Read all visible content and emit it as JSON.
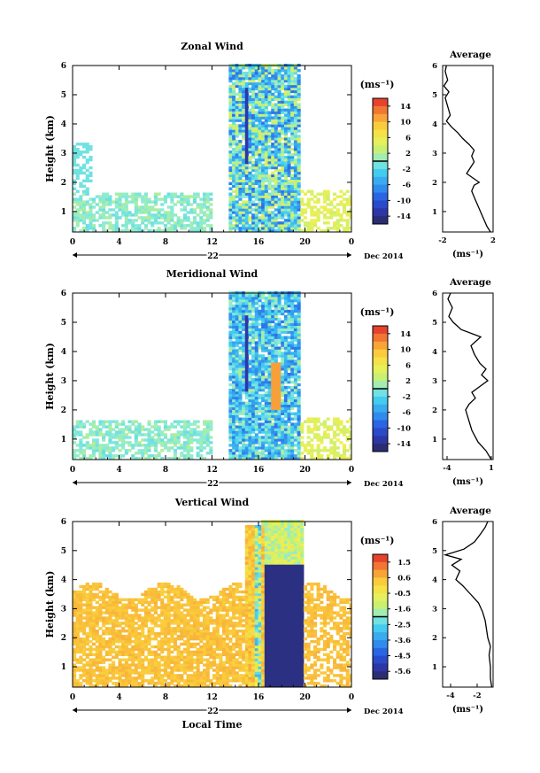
{
  "chart_data": [
    {
      "type": "heatmap",
      "title": "Zonal Wind",
      "ylabel": "Height (km)",
      "xticks": [
        "0",
        "4",
        "8",
        "12",
        "16",
        "20",
        "0"
      ],
      "yticks": [
        "1",
        "2",
        "3",
        "4",
        "5",
        "6"
      ],
      "date_center": "22",
      "date_label": "Dec 2014",
      "ylim": [
        0.3,
        6
      ],
      "xlim": [
        0,
        24
      ],
      "colorbar": {
        "unit": "(ms⁻¹)",
        "ticks": [
          "14",
          "10",
          "6",
          "2",
          "-2",
          "-6",
          "-10",
          "-14"
        ],
        "range": [
          -16,
          16
        ]
      },
      "profile": {
        "title": "Average",
        "xlabel": "(ms⁻¹)",
        "xticks": [
          "-2",
          "2"
        ],
        "xlim": [
          -2,
          2
        ],
        "yticks": [
          "1",
          "2",
          "3",
          "4",
          "5",
          "6"
        ],
        "points": [
          [
            1.8,
            0.3
          ],
          [
            1.5,
            0.5
          ],
          [
            1.2,
            0.8
          ],
          [
            0.9,
            1.1
          ],
          [
            0.6,
            1.4
          ],
          [
            0.3,
            1.7
          ],
          [
            0.5,
            1.9
          ],
          [
            0.9,
            2.0
          ],
          [
            0.4,
            2.15
          ],
          [
            -0.1,
            2.3
          ],
          [
            0.2,
            2.5
          ],
          [
            0.5,
            2.7
          ],
          [
            0.3,
            2.9
          ],
          [
            0.5,
            3.1
          ],
          [
            0.1,
            3.3
          ],
          [
            -0.4,
            3.5
          ],
          [
            -0.8,
            3.7
          ],
          [
            -1.3,
            3.9
          ],
          [
            -1.7,
            4.1
          ],
          [
            -1.4,
            4.3
          ],
          [
            -1.6,
            4.6
          ],
          [
            -1.8,
            4.9
          ],
          [
            -1.5,
            5.1
          ],
          [
            -1.9,
            5.3
          ],
          [
            -1.6,
            5.5
          ],
          [
            -1.8,
            5.8
          ],
          [
            -1.7,
            6.0
          ]
        ]
      }
    },
    {
      "type": "heatmap",
      "title": "Meridional Wind",
      "ylabel": "Height (km)",
      "xticks": [
        "0",
        "4",
        "8",
        "12",
        "16",
        "20",
        "0"
      ],
      "yticks": [
        "1",
        "2",
        "3",
        "4",
        "5",
        "6"
      ],
      "date_center": "22",
      "date_label": "Dec 2014",
      "ylim": [
        0.3,
        6
      ],
      "xlim": [
        0,
        24
      ],
      "colorbar": {
        "unit": "(ms⁻¹)",
        "ticks": [
          "14",
          "10",
          "6",
          "2",
          "-2",
          "-6",
          "-10",
          "-14"
        ],
        "range": [
          -16,
          16
        ]
      },
      "profile": {
        "title": "Average",
        "xlabel": "(ms⁻¹)",
        "xticks": [
          "-4",
          "1"
        ],
        "xlim": [
          -4.5,
          1.2
        ],
        "yticks": [
          "1",
          "2",
          "3",
          "4",
          "5",
          "6"
        ],
        "points": [
          [
            1.0,
            0.3
          ],
          [
            0.4,
            0.6
          ],
          [
            -0.5,
            0.9
          ],
          [
            -1.2,
            1.3
          ],
          [
            -1.6,
            1.7
          ],
          [
            -1.9,
            2.0
          ],
          [
            -1.5,
            2.2
          ],
          [
            -0.8,
            2.4
          ],
          [
            -1.2,
            2.6
          ],
          [
            -0.3,
            2.8
          ],
          [
            0.6,
            3.0
          ],
          [
            -0.1,
            3.2
          ],
          [
            0.4,
            3.4
          ],
          [
            -0.3,
            3.6
          ],
          [
            -0.9,
            3.9
          ],
          [
            -1.3,
            4.2
          ],
          [
            -0.2,
            4.5
          ],
          [
            -2.4,
            4.75
          ],
          [
            -3.3,
            5.0
          ],
          [
            -3.8,
            5.2
          ],
          [
            -3.4,
            5.5
          ],
          [
            -3.9,
            5.8
          ],
          [
            -3.6,
            6.0
          ]
        ]
      }
    },
    {
      "type": "heatmap",
      "title": "Vertical Wind",
      "ylabel": "Height (km)",
      "xlabel": "Local Time",
      "xticks": [
        "0",
        "4",
        "8",
        "12",
        "16",
        "20",
        "0"
      ],
      "yticks": [
        "1",
        "2",
        "3",
        "4",
        "5",
        "6"
      ],
      "date_center": "22",
      "date_label": "Dec 2014",
      "ylim": [
        0.3,
        6
      ],
      "xlim": [
        0,
        24
      ],
      "colorbar": {
        "unit": "(ms⁻¹)",
        "ticks": [
          "1.5",
          "0.6",
          "-0.5",
          "-1.6",
          "-2.5",
          "-3.6",
          "-4.5",
          "-5.6"
        ],
        "range": [
          -6.0,
          2.0
        ]
      },
      "profile": {
        "title": "Average",
        "xlabel": "(ms⁻¹)",
        "xticks": [
          "-4",
          "-2"
        ],
        "xlim": [
          -4.6,
          -0.8
        ],
        "yticks": [
          "1",
          "2",
          "3",
          "4",
          "5",
          "6"
        ],
        "points": [
          [
            -0.9,
            0.3
          ],
          [
            -1.0,
            0.6
          ],
          [
            -1.0,
            1.0
          ],
          [
            -1.1,
            1.4
          ],
          [
            -1.0,
            1.7
          ],
          [
            -1.2,
            2.0
          ],
          [
            -1.3,
            2.3
          ],
          [
            -1.4,
            2.6
          ],
          [
            -1.6,
            2.9
          ],
          [
            -1.9,
            3.2
          ],
          [
            -2.5,
            3.5
          ],
          [
            -3.1,
            3.8
          ],
          [
            -3.6,
            4.0
          ],
          [
            -3.3,
            4.3
          ],
          [
            -3.9,
            4.5
          ],
          [
            -3.2,
            4.7
          ],
          [
            -4.4,
            4.85
          ],
          [
            -3.0,
            5.05
          ],
          [
            -2.2,
            5.3
          ],
          [
            -1.7,
            5.6
          ],
          [
            -1.4,
            5.8
          ],
          [
            -1.2,
            6.0
          ]
        ]
      }
    }
  ]
}
